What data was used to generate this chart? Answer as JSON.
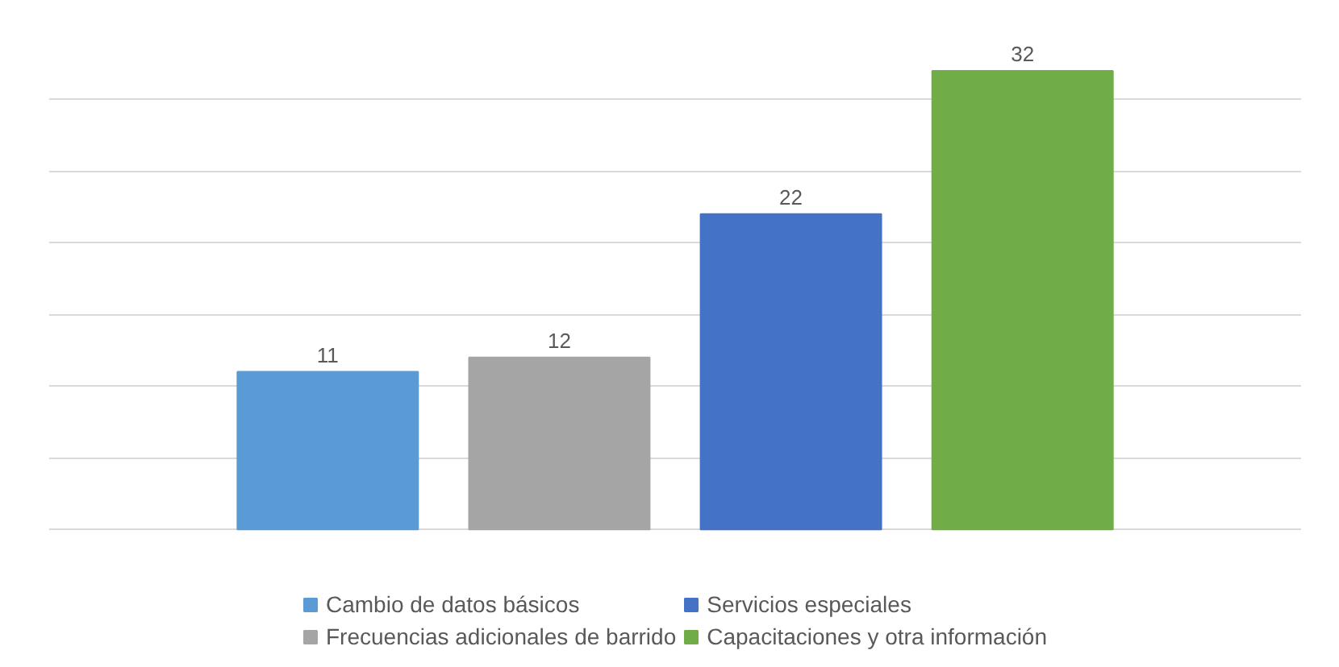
{
  "chart_data": {
    "type": "bar",
    "categories": [
      null
    ],
    "series": [
      {
        "name": "Cambio de datos básicos",
        "color": "#5b9bd5",
        "values": [
          11
        ]
      },
      {
        "name": "Frecuencias adicionales de barrido",
        "color": "#a5a5a5",
        "values": [
          12
        ]
      },
      {
        "name": "Servicios especiales",
        "color": "#4472c4",
        "values": [
          22
        ]
      },
      {
        "name": "Capacitaciones y otra información",
        "color": "#70ad47",
        "values": [
          32
        ]
      }
    ],
    "yticks": [
      {
        "value": 0,
        "label": null
      },
      {
        "value": 5,
        "label": null
      },
      {
        "value": 10,
        "label": null
      },
      {
        "value": 15,
        "label": null
      },
      {
        "value": 20,
        "label": null
      },
      {
        "value": 25,
        "label": null
      },
      {
        "value": 30,
        "label": null
      }
    ],
    "grid": "y",
    "tick_labels": false,
    "data_labels": true,
    "legend": "bottom"
  }
}
